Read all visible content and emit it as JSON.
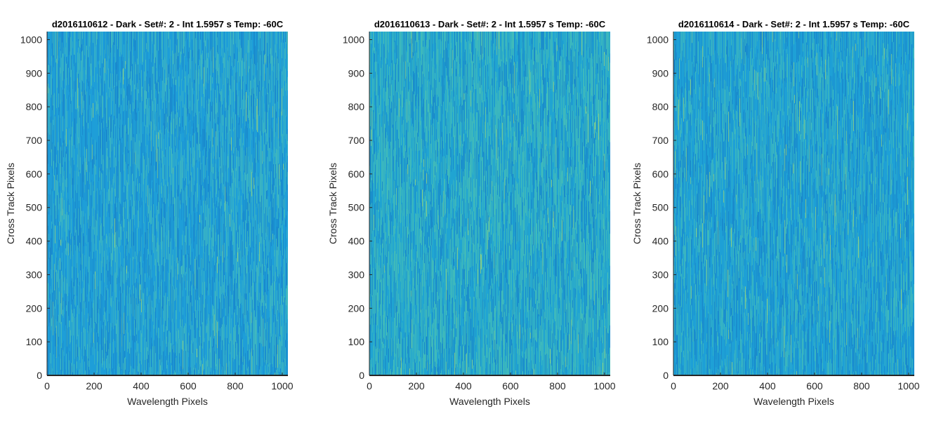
{
  "chart_data": [
    {
      "type": "heatmap",
      "title": "d2016110612 - Dark - Set#: 2 - Int 1.5957 s Temp: -60C",
      "xlabel": "Wavelength Pixels",
      "ylabel": "Cross Track Pixels",
      "xlim": [
        0,
        1024
      ],
      "ylim": [
        0,
        1024
      ],
      "xticks": [
        0,
        200,
        400,
        600,
        800,
        1000
      ],
      "yticks": [
        0,
        100,
        200,
        300,
        400,
        500,
        600,
        700,
        800,
        900,
        1000
      ],
      "colormap": "parula",
      "base_color": "#1e9ed8",
      "accent_color": "#4fc3b4",
      "dark_color": "#1678c4",
      "texture": "vertical streaks, slightly more green-yellow toward right side"
    },
    {
      "type": "heatmap",
      "title": "d2016110613 - Dark - Set#: 2 - Int 1.5957 s Temp: -60C",
      "xlabel": "Wavelength Pixels",
      "ylabel": "Cross Track Pixels",
      "xlim": [
        0,
        1024
      ],
      "ylim": [
        0,
        1024
      ],
      "xticks": [
        0,
        200,
        400,
        600,
        800,
        1000
      ],
      "yticks": [
        0,
        100,
        200,
        300,
        400,
        500,
        600,
        700,
        800,
        900,
        1000
      ],
      "colormap": "parula",
      "base_color": "#20a4d2",
      "accent_color": "#52c6ad",
      "dark_color": "#1678c4",
      "texture": "vertical streaks, greener overall"
    },
    {
      "type": "heatmap",
      "title": "d2016110614 - Dark - Set#: 2 - Int 1.5957 s Temp: -60C",
      "xlabel": "Wavelength Pixels",
      "ylabel": "Cross Track Pixels",
      "xlim": [
        0,
        1024
      ],
      "ylim": [
        0,
        1024
      ],
      "xticks": [
        0,
        200,
        400,
        600,
        800,
        1000
      ],
      "yticks": [
        0,
        100,
        200,
        300,
        400,
        500,
        600,
        700,
        800,
        900,
        1000
      ],
      "colormap": "parula",
      "base_color": "#1ea0d6",
      "accent_color": "#4cc2b2",
      "dark_color": "#1678c4",
      "texture": "vertical streaks"
    }
  ]
}
